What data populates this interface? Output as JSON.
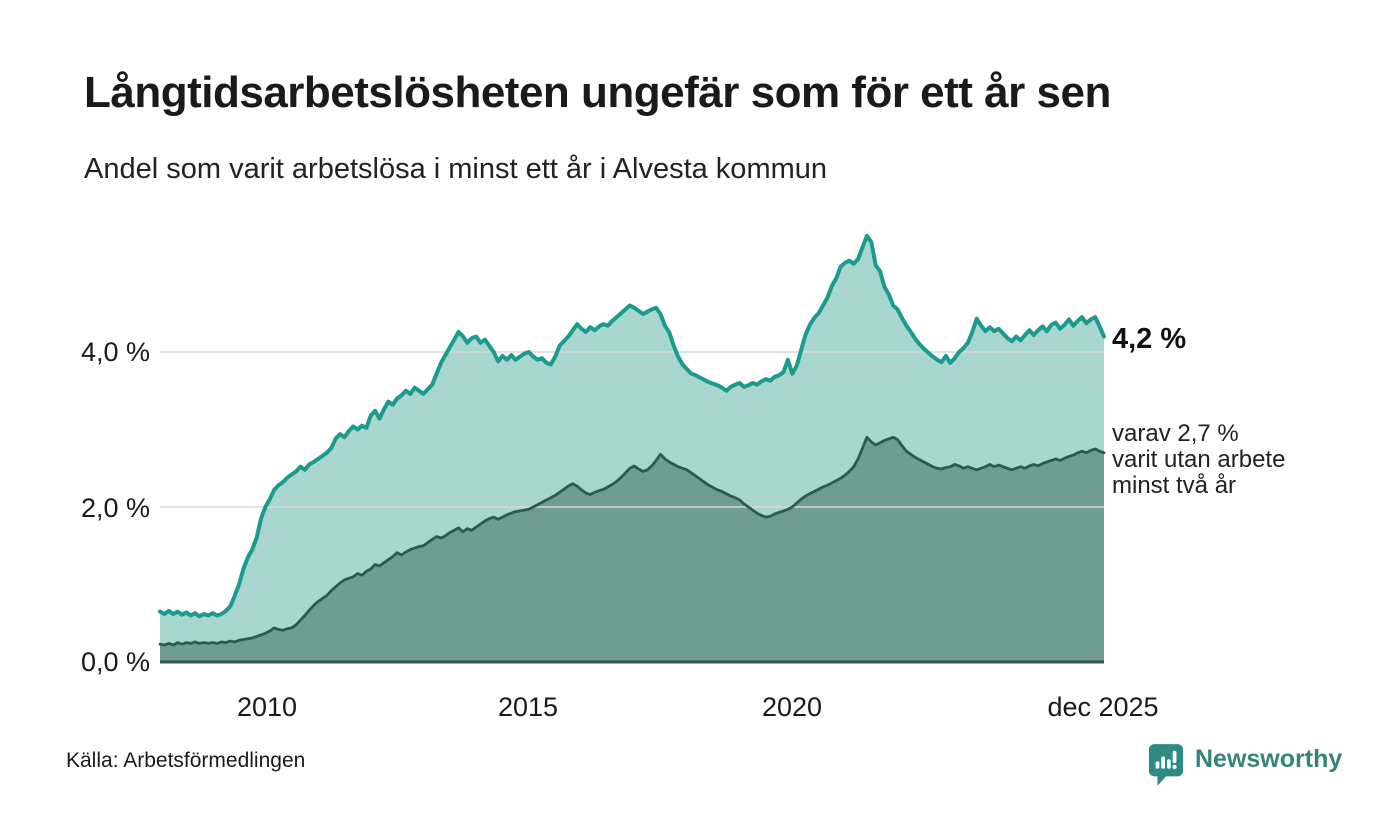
{
  "header": {
    "title": "Långtidsarbetslösheten ungefär som för ett år sen",
    "subtitle": "Andel som varit arbetslösa i minst ett år i Alvesta kommun"
  },
  "chart_data": {
    "type": "area",
    "x_start": 2008.0,
    "x_end": 2025.92,
    "ylim": [
      0,
      5.6
    ],
    "grid": true,
    "unit": "%",
    "y_ticks": [
      {
        "value": 0,
        "label": "0,0 %"
      },
      {
        "value": 2,
        "label": "2,0 %"
      },
      {
        "value": 4,
        "label": "4,0 %"
      }
    ],
    "x_ticks": [
      {
        "value": 2010,
        "label": "2010"
      },
      {
        "value": 2015,
        "label": "2015"
      },
      {
        "value": 2020,
        "label": "2020"
      },
      {
        "value": 2025.92,
        "label": "dec 2025"
      }
    ],
    "series": [
      {
        "name": "arbetslösa minst ett år",
        "line_color": "#1b9b8d",
        "fill_color": "#a9d6ce",
        "line_width": 4,
        "values": [
          0.65,
          0.62,
          0.66,
          0.62,
          0.65,
          0.61,
          0.64,
          0.6,
          0.63,
          0.59,
          0.62,
          0.6,
          0.63,
          0.6,
          0.62,
          0.66,
          0.72,
          0.85,
          1.0,
          1.2,
          1.35,
          1.45,
          1.6,
          1.85,
          2.0,
          2.1,
          2.22,
          2.28,
          2.32,
          2.38,
          2.42,
          2.46,
          2.52,
          2.48,
          2.55,
          2.58,
          2.62,
          2.66,
          2.7,
          2.76,
          2.88,
          2.94,
          2.9,
          2.98,
          3.04,
          3.0,
          3.05,
          3.02,
          3.18,
          3.24,
          3.14,
          3.26,
          3.36,
          3.32,
          3.4,
          3.44,
          3.5,
          3.46,
          3.54,
          3.5,
          3.46,
          3.52,
          3.58,
          3.72,
          3.86,
          3.96,
          4.06,
          4.16,
          4.26,
          4.2,
          4.12,
          4.18,
          4.2,
          4.12,
          4.16,
          4.08,
          4.0,
          3.88,
          3.95,
          3.9,
          3.96,
          3.9,
          3.94,
          3.98,
          4.0,
          3.94,
          3.9,
          3.92,
          3.86,
          3.84,
          3.94,
          4.08,
          4.14,
          4.2,
          4.28,
          4.36,
          4.3,
          4.26,
          4.32,
          4.28,
          4.33,
          4.36,
          4.34,
          4.4,
          4.45,
          4.5,
          4.55,
          4.6,
          4.57,
          4.53,
          4.49,
          4.52,
          4.55,
          4.57,
          4.49,
          4.34,
          4.25,
          4.08,
          3.94,
          3.84,
          3.78,
          3.72,
          3.7,
          3.67,
          3.64,
          3.61,
          3.59,
          3.57,
          3.54,
          3.5,
          3.55,
          3.58,
          3.6,
          3.55,
          3.57,
          3.6,
          3.58,
          3.62,
          3.65,
          3.63,
          3.68,
          3.7,
          3.74,
          3.9,
          3.72,
          3.82,
          4.02,
          4.22,
          4.35,
          4.44,
          4.5,
          4.6,
          4.7,
          4.85,
          4.95,
          5.1,
          5.15,
          5.18,
          5.14,
          5.2,
          5.35,
          5.5,
          5.42,
          5.12,
          5.04,
          4.84,
          4.74,
          4.6,
          4.55,
          4.44,
          4.34,
          4.26,
          4.17,
          4.1,
          4.04,
          3.99,
          3.94,
          3.9,
          3.87,
          3.95,
          3.86,
          3.92,
          4.0,
          4.05,
          4.12,
          4.26,
          4.43,
          4.34,
          4.27,
          4.32,
          4.27,
          4.3,
          4.24,
          4.18,
          4.14,
          4.2,
          4.15,
          4.22,
          4.28,
          4.22,
          4.28,
          4.33,
          4.27,
          4.35,
          4.38,
          4.3,
          4.35,
          4.42,
          4.34,
          4.4,
          4.45,
          4.37,
          4.42,
          4.45,
          4.33,
          4.2
        ]
      },
      {
        "name": "varav utan arbete minst två år",
        "line_color": "#2e5a54",
        "fill_color": "#719c95",
        "line_width": 2.8,
        "values": [
          0.23,
          0.22,
          0.24,
          0.22,
          0.25,
          0.23,
          0.25,
          0.24,
          0.26,
          0.24,
          0.25,
          0.24,
          0.25,
          0.24,
          0.26,
          0.25,
          0.27,
          0.26,
          0.28,
          0.29,
          0.3,
          0.31,
          0.33,
          0.35,
          0.37,
          0.4,
          0.44,
          0.42,
          0.41,
          0.43,
          0.44,
          0.48,
          0.54,
          0.6,
          0.67,
          0.73,
          0.78,
          0.82,
          0.86,
          0.92,
          0.97,
          1.02,
          1.06,
          1.08,
          1.1,
          1.14,
          1.12,
          1.17,
          1.2,
          1.26,
          1.24,
          1.28,
          1.32,
          1.36,
          1.41,
          1.38,
          1.42,
          1.45,
          1.47,
          1.49,
          1.5,
          1.54,
          1.58,
          1.62,
          1.6,
          1.63,
          1.67,
          1.7,
          1.73,
          1.68,
          1.72,
          1.7,
          1.74,
          1.78,
          1.82,
          1.85,
          1.87,
          1.84,
          1.87,
          1.9,
          1.92,
          1.94,
          1.95,
          1.96,
          1.97,
          2.0,
          2.03,
          2.06,
          2.09,
          2.12,
          2.15,
          2.19,
          2.23,
          2.27,
          2.3,
          2.27,
          2.22,
          2.18,
          2.16,
          2.19,
          2.21,
          2.23,
          2.26,
          2.29,
          2.33,
          2.38,
          2.44,
          2.5,
          2.53,
          2.49,
          2.46,
          2.48,
          2.53,
          2.6,
          2.68,
          2.62,
          2.58,
          2.55,
          2.52,
          2.5,
          2.48,
          2.44,
          2.4,
          2.36,
          2.32,
          2.28,
          2.25,
          2.22,
          2.2,
          2.17,
          2.14,
          2.12,
          2.09,
          2.04,
          2.0,
          1.96,
          1.92,
          1.89,
          1.87,
          1.88,
          1.91,
          1.93,
          1.95,
          1.97,
          2.0,
          2.05,
          2.1,
          2.14,
          2.17,
          2.2,
          2.23,
          2.26,
          2.28,
          2.31,
          2.34,
          2.37,
          2.41,
          2.46,
          2.52,
          2.62,
          2.76,
          2.9,
          2.84,
          2.8,
          2.83,
          2.86,
          2.88,
          2.9,
          2.87,
          2.79,
          2.72,
          2.68,
          2.64,
          2.61,
          2.58,
          2.55,
          2.52,
          2.5,
          2.49,
          2.51,
          2.52,
          2.55,
          2.53,
          2.5,
          2.52,
          2.5,
          2.48,
          2.5,
          2.52,
          2.55,
          2.52,
          2.54,
          2.52,
          2.5,
          2.48,
          2.5,
          2.52,
          2.5,
          2.53,
          2.55,
          2.53,
          2.56,
          2.58,
          2.6,
          2.62,
          2.6,
          2.63,
          2.65,
          2.67,
          2.7,
          2.72,
          2.7,
          2.73,
          2.75,
          2.72,
          2.7
        ]
      }
    ],
    "annotations": {
      "latest_total": "4,2 %",
      "secondary_lines": [
        "varav 2,7 %",
        "varit utan arbete",
        "minst två år"
      ]
    }
  },
  "footer": {
    "source": "Källa: Arbetsförmedlingen",
    "logo_text": "Newsworthy"
  },
  "colors": {
    "accent_teal": "#1b9b8d",
    "light_fill": "#a9d6ce",
    "dark_line": "#2e5a54",
    "dark_fill": "#719c95",
    "gridline": "#d8d8d8",
    "baseline": "#2e5a54",
    "text": "#1a1a1a",
    "logo_teal": "#2e8b84"
  }
}
